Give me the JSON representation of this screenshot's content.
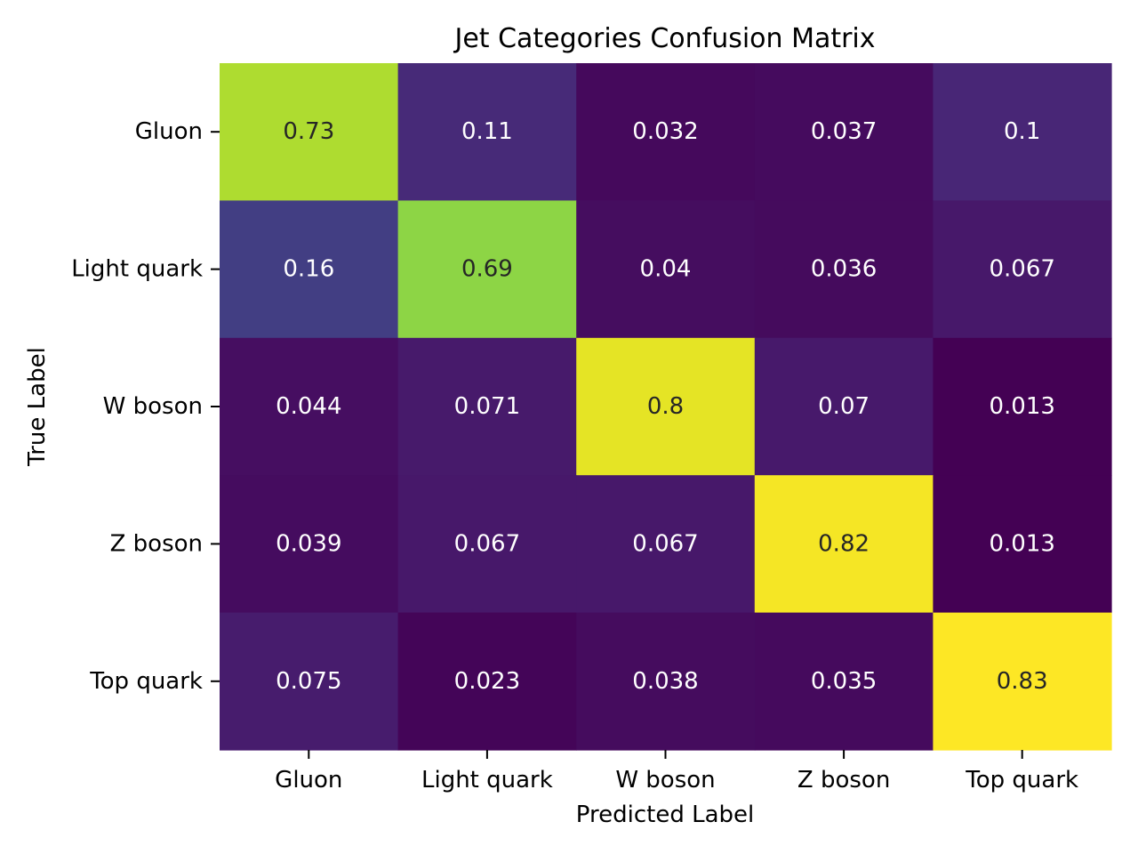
{
  "chart_data": {
    "type": "heatmap",
    "title": "Jet Categories Confusion Matrix",
    "xlabel": "Predicted Label",
    "ylabel": "True Label",
    "x_categories": [
      "Gluon",
      "Light quark",
      "W boson",
      "Z boson",
      "Top quark"
    ],
    "y_categories": [
      "Gluon",
      "Light quark",
      "W boson",
      "Z boson",
      "Top quark"
    ],
    "values": [
      [
        0.73,
        0.11,
        0.032,
        0.037,
        0.1
      ],
      [
        0.16,
        0.69,
        0.04,
        0.036,
        0.067
      ],
      [
        0.044,
        0.071,
        0.8,
        0.07,
        0.013
      ],
      [
        0.039,
        0.067,
        0.067,
        0.82,
        0.013
      ],
      [
        0.075,
        0.023,
        0.038,
        0.035,
        0.83
      ]
    ],
    "labels": [
      [
        "0.73",
        "0.11",
        "0.032",
        "0.037",
        "0.1"
      ],
      [
        "0.16",
        "0.69",
        "0.04",
        "0.036",
        "0.067"
      ],
      [
        "0.044",
        "0.071",
        "0.8",
        "0.07",
        "0.013"
      ],
      [
        "0.039",
        "0.067",
        "0.067",
        "0.82",
        "0.013"
      ],
      [
        "0.075",
        "0.023",
        "0.038",
        "0.035",
        "0.83"
      ]
    ],
    "colormap": "viridis",
    "colorbar": false,
    "grid": false
  }
}
